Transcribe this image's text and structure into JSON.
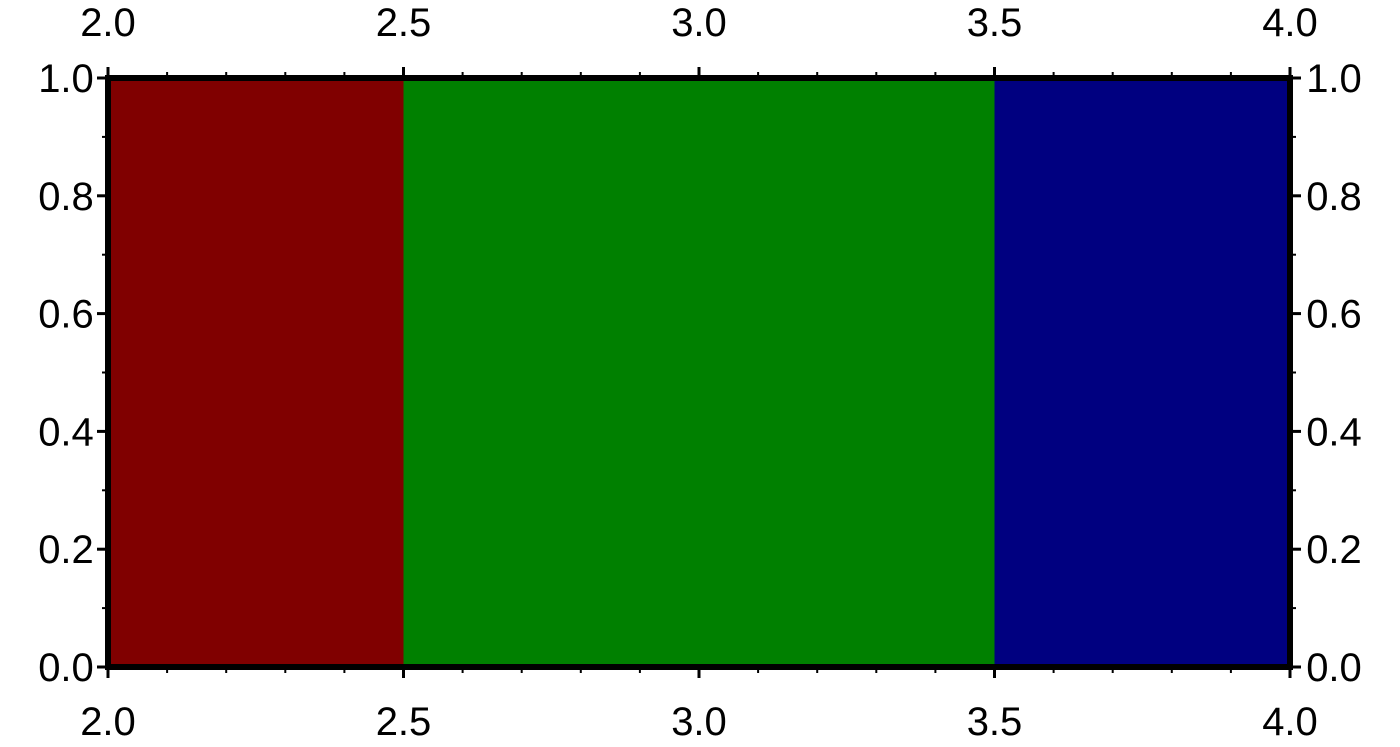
{
  "chart_data": {
    "type": "bar",
    "title": "",
    "xlabel": "",
    "ylabel": "",
    "xlim": [
      2.0,
      4.0
    ],
    "ylim": [
      0.0,
      1.0
    ],
    "grid": false,
    "bars": [
      {
        "x0": 2.0,
        "x1": 2.5,
        "y": 1.0,
        "color": "#800000"
      },
      {
        "x0": 2.5,
        "x1": 3.5,
        "y": 1.0,
        "color": "#008000"
      },
      {
        "x0": 3.5,
        "x1": 4.0,
        "y": 1.0,
        "color": "#000080"
      }
    ],
    "x_ticks": [
      2.0,
      2.5,
      3.0,
      3.5,
      4.0
    ],
    "x_tick_labels": [
      "2.0",
      "2.5",
      "3.0",
      "3.5",
      "4.0"
    ],
    "y_ticks": [
      0.0,
      0.2,
      0.4,
      0.6,
      0.8,
      1.0
    ],
    "y_tick_labels": [
      "0.0",
      "0.2",
      "0.4",
      "0.6",
      "0.8",
      "1.0"
    ],
    "x_minor_step": 0.1,
    "y_minor_step": 0.1
  }
}
